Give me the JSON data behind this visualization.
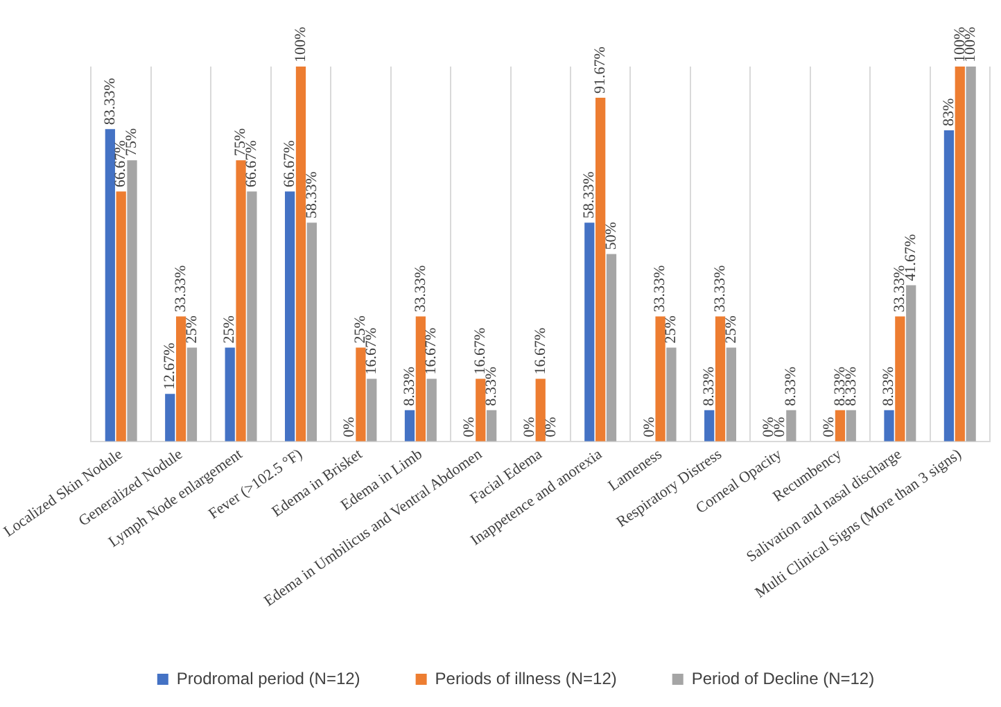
{
  "chart_data": {
    "type": "bar",
    "categories": [
      "Localized Skin Nodule",
      "Generalized Nodule",
      "Lymph Node enlargement",
      "Fever (>102.5 °F)",
      "Edema in Brisket",
      "Edema in Limb",
      "Edema in Umbilicus and Ventral Abdomen",
      "Facial Edema",
      "Inappetence and anorexia",
      "Lameness",
      "Respiratory Distress",
      "Corneal Opacity",
      "Recumbency",
      "Salivation and nasal discharge",
      "Multi Clinical Signs (More than 3 signs)"
    ],
    "series": [
      {
        "name": "Prodromal period (N=12)",
        "color": "#4472c4",
        "values": [
          83.33,
          12.67,
          25,
          66.67,
          0,
          8.33,
          0,
          0,
          58.33,
          0,
          8.33,
          0,
          0,
          8.33,
          83
        ],
        "value_labels": [
          "83.33%",
          "12.67%",
          "25%",
          "66.67%",
          "0%",
          "8.33%",
          "0%",
          "0%",
          "58.33%",
          "0%",
          "8.33%",
          "0%",
          "0%",
          "8.33%",
          "83%"
        ]
      },
      {
        "name": "Periods of illness (N=12)",
        "color": "#ed7d31",
        "values": [
          66.67,
          33.33,
          75,
          100,
          25,
          33.33,
          16.67,
          16.67,
          91.67,
          33.33,
          33.33,
          0,
          8.33,
          33.33,
          100
        ],
        "value_labels": [
          "66.67%",
          "33.33%",
          "75%",
          "100%",
          "25%",
          "33.33%",
          "16.67%",
          "16.67%",
          "91.67%",
          "33.33%",
          "33.33%",
          "0%",
          "8.33%",
          "33.33%",
          "100%"
        ]
      },
      {
        "name": "Period of Decline (N=12)",
        "color": "#a5a5a5",
        "values": [
          75,
          25,
          66.67,
          58.33,
          16.67,
          16.67,
          8.33,
          0,
          50,
          25,
          25,
          8.33,
          8.33,
          41.67,
          100
        ],
        "value_labels": [
          "75%",
          "25%",
          "66.67%",
          "58.33%",
          "16.67%",
          "16.67%",
          "8.33%",
          "0%",
          "50%",
          "25%",
          "25%",
          "8.33%",
          "8.33%",
          "41.67%",
          "100%"
        ]
      }
    ],
    "grid": "x",
    "legend": "bottom"
  }
}
